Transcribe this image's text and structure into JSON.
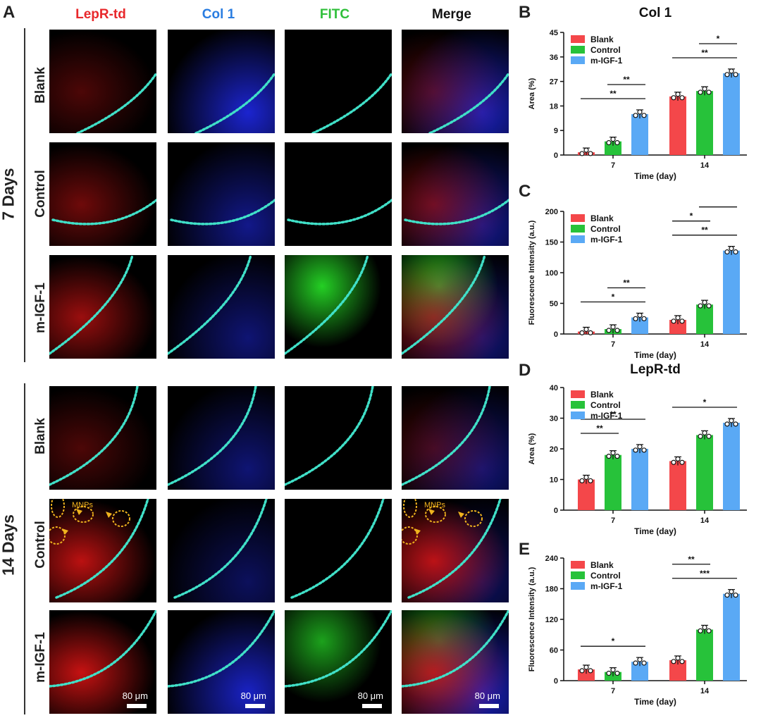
{
  "panel_letters": {
    "a": "A",
    "b": "B",
    "c": "C",
    "d": "D",
    "e": "E"
  },
  "columns": [
    {
      "label": "LepR-td",
      "color": "#e8282b"
    },
    {
      "label": "Col 1",
      "color": "#2a7de1"
    },
    {
      "label": "FITC",
      "color": "#2fbf3a"
    },
    {
      "label": "Merge",
      "color": "#111111"
    }
  ],
  "groups": [
    "7 Days",
    "14 Days"
  ],
  "rows": [
    "Blank",
    "Control",
    "m-IGF-1",
    "Blank",
    "Control",
    "m-IGF-1"
  ],
  "annotation": "MNPs",
  "scale_bar": "80 μm",
  "colors": {
    "blank": "#f4474a",
    "control": "#27c23a",
    "migf1": "#5aa9f5",
    "dots": "#40e0c8"
  },
  "chart_data": [
    {
      "id": "B",
      "type": "bar",
      "title": "Col 1",
      "xlabel": "Time (day)",
      "ylabel": "Area (%)",
      "categories": [
        "7",
        "14"
      ],
      "ylim": [
        0,
        45
      ],
      "yticks": [
        0,
        9,
        18,
        27,
        36,
        45
      ],
      "legend": "top-left",
      "series": [
        {
          "name": "Blank",
          "values": [
            1.0,
            21.5
          ]
        },
        {
          "name": "Control",
          "values": [
            5.0,
            23.5
          ]
        },
        {
          "name": "m-IGF-1",
          "values": [
            15.0,
            30.0
          ]
        }
      ],
      "significance": [
        {
          "group": 0,
          "from": 0,
          "to": 2,
          "label": "**"
        },
        {
          "group": 0,
          "from": 1,
          "to": 2,
          "label": "**"
        },
        {
          "group": 1,
          "from": 0,
          "to": 2,
          "label": "**"
        },
        {
          "group": 1,
          "from": 1,
          "to": 2,
          "label": "*"
        }
      ]
    },
    {
      "id": "C",
      "type": "bar",
      "title": "",
      "xlabel": "Time (day)",
      "ylabel": "Fluorescence Intensity (a.u.)",
      "categories": [
        "7",
        "14"
      ],
      "ylim": [
        0,
        200
      ],
      "yticks": [
        0,
        50,
        100,
        150,
        200
      ],
      "legend": "top-left",
      "series": [
        {
          "name": "Blank",
          "values": [
            4,
            23
          ]
        },
        {
          "name": "Control",
          "values": [
            8,
            48
          ]
        },
        {
          "name": "m-IGF-1",
          "values": [
            27,
            136
          ]
        }
      ],
      "significance": [
        {
          "group": 0,
          "from": 0,
          "to": 2,
          "label": "*"
        },
        {
          "group": 0,
          "from": 1,
          "to": 2,
          "label": "**"
        },
        {
          "group": 1,
          "from": 0,
          "to": 2,
          "label": "**"
        },
        {
          "group": 1,
          "from": 0,
          "to": 1,
          "label": "*"
        },
        {
          "group": 1,
          "from": 1,
          "to": 2,
          "label": "**"
        }
      ]
    },
    {
      "id": "D",
      "type": "bar",
      "title": "LepR-td",
      "xlabel": "Time (day)",
      "ylabel": "Area (%)",
      "categories": [
        "7",
        "14"
      ],
      "ylim": [
        0,
        40
      ],
      "yticks": [
        0,
        10,
        20,
        30,
        40
      ],
      "legend": "top-left",
      "series": [
        {
          "name": "Blank",
          "values": [
            10,
            16
          ]
        },
        {
          "name": "Control",
          "values": [
            18,
            24.5
          ]
        },
        {
          "name": "m-IGF-1",
          "values": [
            20,
            28.5
          ]
        }
      ],
      "significance": [
        {
          "group": 0,
          "from": 0,
          "to": 1,
          "label": "**"
        },
        {
          "group": 0,
          "from": 0,
          "to": 2,
          "label": "**"
        },
        {
          "group": 1,
          "from": 0,
          "to": 2,
          "label": "*"
        }
      ]
    },
    {
      "id": "E",
      "type": "bar",
      "title": "",
      "xlabel": "Time (day)",
      "ylabel": "Fluorescence Intensity (a.u.)",
      "categories": [
        "7",
        "14"
      ],
      "ylim": [
        0,
        240
      ],
      "yticks": [
        0,
        60,
        120,
        180,
        240
      ],
      "legend": "top-left",
      "series": [
        {
          "name": "Blank",
          "values": [
            22,
            40
          ]
        },
        {
          "name": "Control",
          "values": [
            17,
            100
          ]
        },
        {
          "name": "m-IGF-1",
          "values": [
            37,
            170
          ]
        }
      ],
      "significance": [
        {
          "group": 0,
          "from": 0,
          "to": 2,
          "label": "*"
        },
        {
          "group": 1,
          "from": 0,
          "to": 2,
          "label": "***"
        },
        {
          "group": 1,
          "from": 0,
          "to": 1,
          "label": "**"
        },
        {
          "group": 1,
          "from": 1,
          "to": 2,
          "label": "**"
        }
      ]
    }
  ]
}
